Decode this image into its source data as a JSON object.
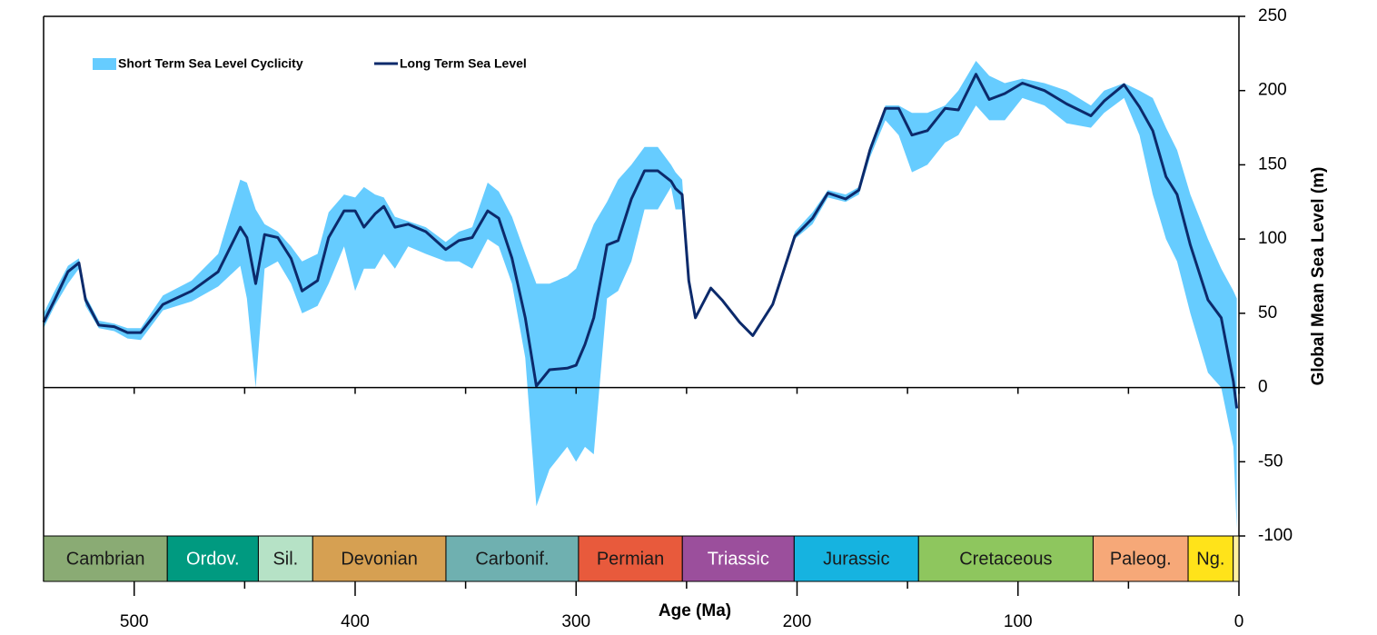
{
  "chart_data": {
    "type": "line",
    "xlabel": "Age (Ma)",
    "ylabel": "Global Mean Sea Level (m)",
    "xlim": [
      541,
      0
    ],
    "ylim": [
      -100,
      250
    ],
    "xticks": [
      500,
      400,
      300,
      200,
      100,
      0
    ],
    "x_minor_ticks": [
      450,
      350,
      250,
      150,
      50
    ],
    "yticks": [
      250,
      200,
      150,
      100,
      50,
      0,
      -50,
      -100
    ],
    "legend": "upper left",
    "x": [
      541,
      536,
      530,
      525,
      522,
      516,
      509,
      503,
      497,
      487,
      474,
      462,
      452,
      449,
      445,
      441,
      435,
      429,
      424,
      417,
      412,
      405,
      400,
      396,
      391,
      387,
      382,
      376,
      368,
      359,
      353,
      347,
      340,
      335,
      329,
      323,
      318,
      312,
      304,
      300,
      296,
      292,
      286,
      281,
      275,
      269,
      263,
      257,
      255,
      252,
      249,
      246,
      239,
      234,
      226,
      220,
      211,
      201,
      193,
      186,
      178,
      172,
      167,
      160,
      154,
      148,
      141,
      133,
      127,
      119,
      113,
      106,
      98,
      88,
      78,
      67,
      61,
      52,
      45,
      39,
      33,
      28,
      22,
      14,
      8,
      2.5,
      1
    ],
    "series": [
      {
        "name": "Short Term Sea Level Cyclicity",
        "color": "#66ccff",
        "lower": [
          40,
          55,
          70,
          80,
          55,
          40,
          38,
          33,
          32,
          52,
          58,
          68,
          82,
          60,
          0,
          80,
          85,
          70,
          50,
          55,
          70,
          95,
          65,
          80,
          80,
          90,
          80,
          95,
          90,
          85,
          85,
          80,
          100,
          95,
          70,
          20,
          -80,
          -55,
          -40,
          -50,
          -40,
          -45,
          60,
          65,
          85,
          120,
          120,
          135,
          120,
          120,
          71,
          46,
          66,
          58,
          43,
          34,
          55,
          100,
          110,
          128,
          125,
          130,
          155,
          180,
          170,
          145,
          150,
          165,
          170,
          190,
          180,
          180,
          195,
          190,
          178,
          175,
          185,
          195,
          170,
          130,
          100,
          85,
          50,
          10,
          0,
          -40,
          -95
        ],
        "upper": [
          50,
          65,
          82,
          87,
          62,
          45,
          43,
          40,
          40,
          62,
          72,
          90,
          140,
          138,
          120,
          110,
          105,
          95,
          85,
          90,
          118,
          130,
          128,
          135,
          130,
          128,
          115,
          112,
          108,
          98,
          105,
          108,
          138,
          132,
          115,
          90,
          70,
          70,
          75,
          80,
          95,
          110,
          125,
          140,
          150,
          162,
          162,
          150,
          145,
          140,
          73,
          48,
          68,
          60,
          45,
          36,
          57,
          105,
          118,
          133,
          130,
          135,
          163,
          190,
          190,
          185,
          185,
          190,
          200,
          220,
          210,
          205,
          208,
          205,
          200,
          190,
          200,
          205,
          200,
          195,
          175,
          160,
          130,
          100,
          80,
          65,
          60
        ]
      },
      {
        "name": "Long Term Sea Level",
        "color": "#0c2a6b",
        "values": [
          44,
          59,
          78,
          84,
          59,
          42,
          41,
          37,
          37,
          56,
          65,
          78,
          108,
          101,
          70,
          103,
          101,
          87,
          65,
          72,
          101,
          119,
          119,
          108,
          117,
          122,
          108,
          110,
          105,
          93,
          99,
          101,
          119,
          114,
          87,
          47,
          1,
          12,
          13,
          15,
          29,
          47,
          96,
          99,
          127,
          146,
          146,
          139,
          134,
          130,
          72,
          47,
          67,
          59,
          44,
          35,
          56,
          102,
          114,
          131,
          127,
          133,
          160,
          188,
          188,
          170,
          173,
          188,
          187,
          211,
          194,
          198,
          205,
          200,
          191,
          183,
          193,
          204,
          189,
          173,
          142,
          130,
          96,
          59,
          47,
          4,
          -14
        ]
      }
    ],
    "periods": [
      {
        "name": "Cambrian",
        "start": 541,
        "end": 485,
        "color": "#8aab74",
        "label_color": "#1a1a1a"
      },
      {
        "name": "Ordov.",
        "start": 485,
        "end": 443.8,
        "color": "#009a80",
        "label_color": "#ffffff"
      },
      {
        "name": "Sil.",
        "start": 443.8,
        "end": 419.2,
        "color": "#b6e2c6",
        "label_color": "#1a1a1a"
      },
      {
        "name": "Devonian",
        "start": 419.2,
        "end": 358.9,
        "color": "#d6a052",
        "label_color": "#1a1a1a"
      },
      {
        "name": "Carbonif.",
        "start": 358.9,
        "end": 298.9,
        "color": "#6fb0b0",
        "label_color": "#1a1a1a"
      },
      {
        "name": "Permian",
        "start": 298.9,
        "end": 251.9,
        "color": "#e85a3c",
        "label_color": "#1a1a1a"
      },
      {
        "name": "Triassic",
        "start": 251.9,
        "end": 201.3,
        "color": "#9b4f9c",
        "label_color": "#ffffff"
      },
      {
        "name": "Jurassic",
        "start": 201.3,
        "end": 145,
        "color": "#16b3e0",
        "label_color": "#1a1a1a"
      },
      {
        "name": "Cretaceous",
        "start": 145,
        "end": 66,
        "color": "#8ec65e",
        "label_color": "#1a1a1a"
      },
      {
        "name": "Paleog.",
        "start": 66,
        "end": 23,
        "color": "#f6a878",
        "label_color": "#1a1a1a"
      },
      {
        "name": "Ng.",
        "start": 23,
        "end": 2.6,
        "color": "#ffe31a",
        "label_color": "#1a1a1a"
      },
      {
        "name": null,
        "start": 2.6,
        "end": 0,
        "color": "#fff2a0",
        "label_color": "#1a1a1a"
      }
    ]
  }
}
